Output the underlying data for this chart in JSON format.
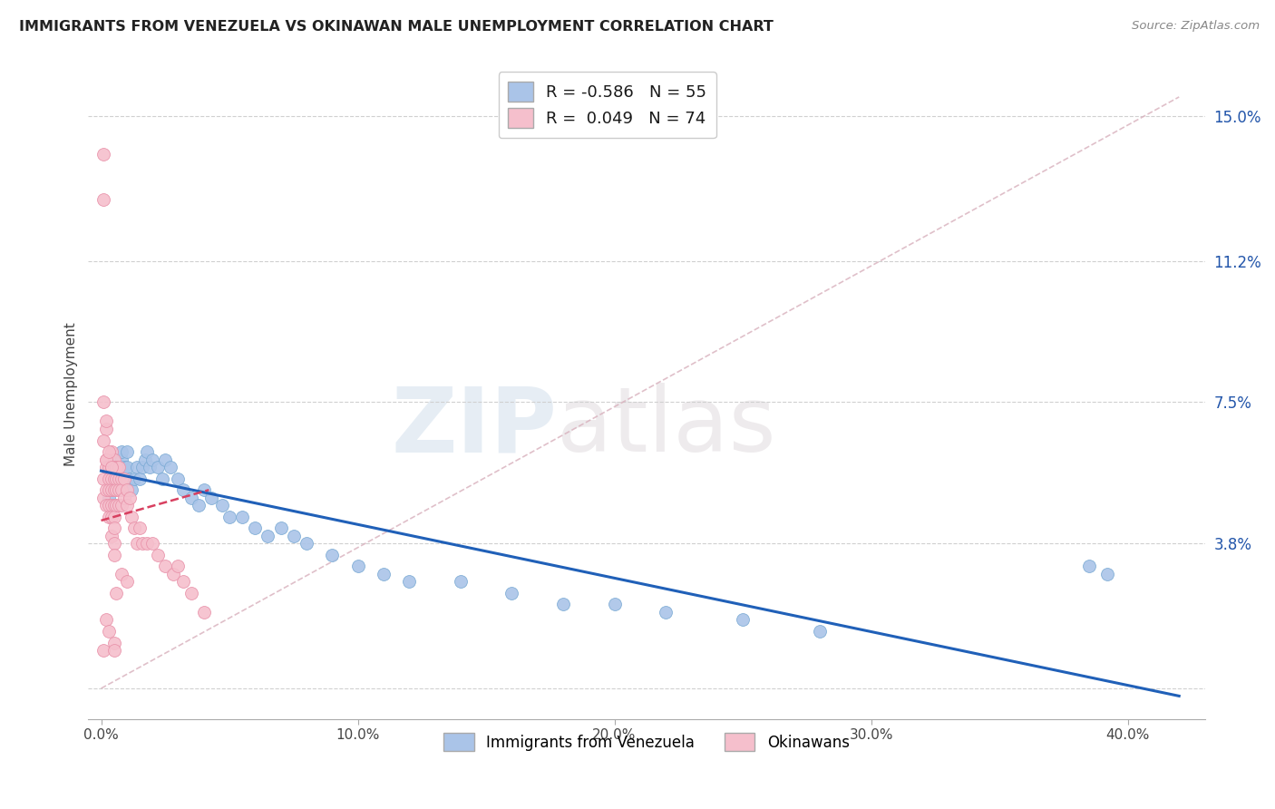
{
  "title": "IMMIGRANTS FROM VENEZUELA VS OKINAWAN MALE UNEMPLOYMENT CORRELATION CHART",
  "source": "Source: ZipAtlas.com",
  "ylabel": "Male Unemployment",
  "xtick_vals": [
    0.0,
    0.1,
    0.2,
    0.3,
    0.4
  ],
  "xtick_labels": [
    "0.0%",
    "10.0%",
    "20.0%",
    "30.0%",
    "40.0%"
  ],
  "ytick_vals": [
    0.0,
    0.038,
    0.075,
    0.112,
    0.15
  ],
  "ytick_labels": [
    "",
    "3.8%",
    "7.5%",
    "11.2%",
    "15.0%"
  ],
  "xlim": [
    -0.005,
    0.43
  ],
  "ylim": [
    -0.008,
    0.162
  ],
  "legend_entries": [
    {
      "label_r": "R = -0.586",
      "label_n": "N = 55",
      "color": "#aac4e8"
    },
    {
      "label_r": "R =  0.049",
      "label_n": "N = 74",
      "color": "#f5bfcc"
    }
  ],
  "legend_labels": [
    "Immigrants from Venezuela",
    "Okinawans"
  ],
  "blue_scatter_x": [
    0.003,
    0.004,
    0.005,
    0.005,
    0.006,
    0.006,
    0.007,
    0.007,
    0.008,
    0.008,
    0.009,
    0.009,
    0.01,
    0.01,
    0.011,
    0.012,
    0.013,
    0.014,
    0.015,
    0.016,
    0.017,
    0.018,
    0.019,
    0.02,
    0.022,
    0.024,
    0.025,
    0.027,
    0.03,
    0.032,
    0.035,
    0.038,
    0.04,
    0.043,
    0.047,
    0.05,
    0.055,
    0.06,
    0.065,
    0.07,
    0.075,
    0.08,
    0.09,
    0.1,
    0.11,
    0.12,
    0.14,
    0.16,
    0.18,
    0.2,
    0.22,
    0.25,
    0.28,
    0.385,
    0.392
  ],
  "blue_scatter_y": [
    0.05,
    0.052,
    0.055,
    0.048,
    0.058,
    0.06,
    0.055,
    0.058,
    0.06,
    0.062,
    0.058,
    0.055,
    0.062,
    0.058,
    0.055,
    0.052,
    0.055,
    0.058,
    0.055,
    0.058,
    0.06,
    0.062,
    0.058,
    0.06,
    0.058,
    0.055,
    0.06,
    0.058,
    0.055,
    0.052,
    0.05,
    0.048,
    0.052,
    0.05,
    0.048,
    0.045,
    0.045,
    0.042,
    0.04,
    0.042,
    0.04,
    0.038,
    0.035,
    0.032,
    0.03,
    0.028,
    0.028,
    0.025,
    0.022,
    0.022,
    0.02,
    0.018,
    0.015,
    0.032,
    0.03
  ],
  "pink_scatter_x": [
    0.001,
    0.001,
    0.001,
    0.001,
    0.001,
    0.002,
    0.002,
    0.002,
    0.002,
    0.002,
    0.002,
    0.003,
    0.003,
    0.003,
    0.003,
    0.003,
    0.003,
    0.004,
    0.004,
    0.004,
    0.004,
    0.004,
    0.004,
    0.004,
    0.005,
    0.005,
    0.005,
    0.005,
    0.005,
    0.005,
    0.005,
    0.005,
    0.005,
    0.005,
    0.006,
    0.006,
    0.006,
    0.006,
    0.007,
    0.007,
    0.007,
    0.007,
    0.008,
    0.008,
    0.008,
    0.009,
    0.009,
    0.01,
    0.01,
    0.011,
    0.012,
    0.013,
    0.014,
    0.015,
    0.016,
    0.018,
    0.02,
    0.022,
    0.025,
    0.028,
    0.03,
    0.032,
    0.035,
    0.04,
    0.001,
    0.001,
    0.002,
    0.002,
    0.003,
    0.004,
    0.005,
    0.006,
    0.008,
    0.01
  ],
  "pink_scatter_y": [
    0.14,
    0.128,
    0.055,
    0.05,
    0.01,
    0.068,
    0.06,
    0.058,
    0.052,
    0.048,
    0.018,
    0.058,
    0.055,
    0.052,
    0.048,
    0.045,
    0.015,
    0.062,
    0.058,
    0.055,
    0.052,
    0.048,
    0.045,
    0.04,
    0.06,
    0.058,
    0.055,
    0.052,
    0.048,
    0.045,
    0.042,
    0.038,
    0.035,
    0.012,
    0.058,
    0.055,
    0.052,
    0.048,
    0.058,
    0.055,
    0.052,
    0.048,
    0.055,
    0.052,
    0.048,
    0.055,
    0.05,
    0.052,
    0.048,
    0.05,
    0.045,
    0.042,
    0.038,
    0.042,
    0.038,
    0.038,
    0.038,
    0.035,
    0.032,
    0.03,
    0.032,
    0.028,
    0.025,
    0.02,
    0.075,
    0.065,
    0.07,
    0.06,
    0.062,
    0.058,
    0.01,
    0.025,
    0.03,
    0.028
  ],
  "blue_line_x": [
    0.0,
    0.42
  ],
  "blue_line_y": [
    0.057,
    -0.002
  ],
  "pink_line_x": [
    0.0,
    0.042
  ],
  "pink_line_y": [
    0.044,
    0.052
  ],
  "diag_line_x": [
    0.0,
    0.42
  ],
  "diag_line_y": [
    0.0,
    0.155
  ],
  "watermark_zip": "ZIP",
  "watermark_atlas": "atlas",
  "scatter_size": 100,
  "blue_color": "#aac4e8",
  "blue_edge": "#7aaad4",
  "pink_color": "#f5bfcc",
  "pink_edge": "#e890a8",
  "blue_line_color": "#2060b8",
  "pink_line_color": "#d84060",
  "diag_line_color": "#d8b0bc",
  "grid_color": "#d0d0d0"
}
